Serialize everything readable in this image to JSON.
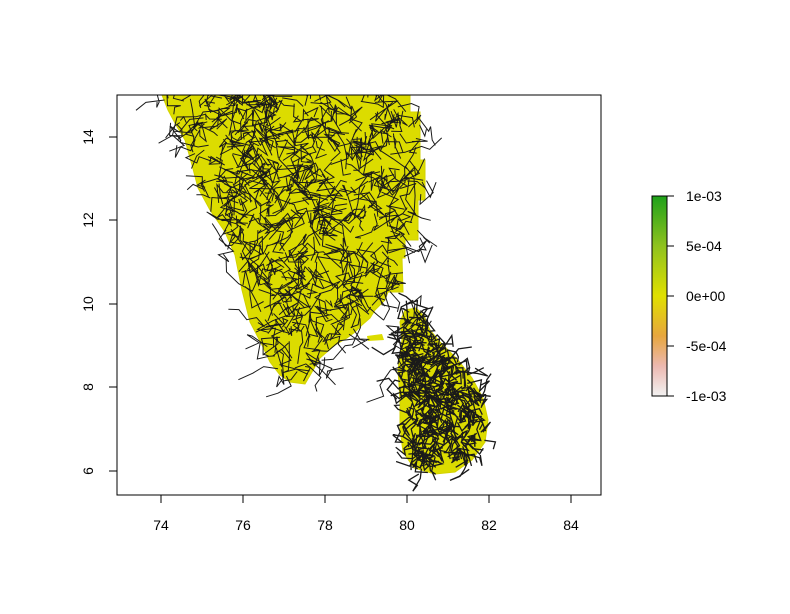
{
  "chart_data": {
    "type": "heatmap",
    "title": "",
    "xlabel": "",
    "ylabel": "",
    "xlim": [
      72.9,
      84.7
    ],
    "ylim": [
      5.4,
      15.0
    ],
    "x_ticks": [
      74,
      76,
      78,
      80,
      82,
      84
    ],
    "x_tick_labels": [
      "74",
      "76",
      "78",
      "80",
      "82",
      "84"
    ],
    "y_ticks": [
      6,
      8,
      10,
      12,
      14
    ],
    "y_tick_labels": [
      "6",
      "8",
      "10",
      "12",
      "14"
    ],
    "raster_value": "0e+00",
    "raster_fill_color": "#e0e000",
    "overlay": "road network (black lines)",
    "legend": {
      "placement": "right",
      "labels": [
        "1e-03",
        "5e-04",
        "0e+00",
        "-5e-04",
        "-1e-03"
      ],
      "values": [
        0.001,
        0.0005,
        0,
        -0.0005,
        -0.001
      ],
      "colors_top_to_bottom": [
        "#1fa11a",
        "#8fc21f",
        "#e0e000",
        "#e7a63e",
        "#ecb8b0",
        "#f2f2f2"
      ]
    }
  }
}
